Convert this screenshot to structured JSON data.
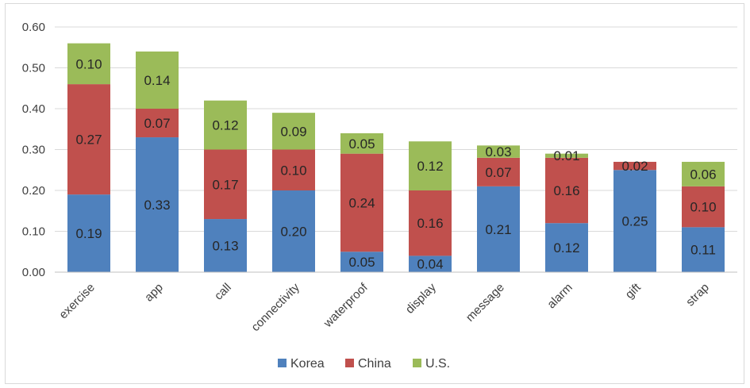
{
  "chart_data": {
    "type": "bar",
    "stacked": true,
    "categories": [
      "exercise",
      "app",
      "call",
      "connectivity",
      "waterproof",
      "display",
      "message",
      "alarm",
      "gift",
      "strap"
    ],
    "series": [
      {
        "name": "Korea",
        "color": "#4f81bd",
        "values": [
          0.19,
          0.33,
          0.13,
          0.2,
          0.05,
          0.04,
          0.21,
          0.12,
          0.25,
          0.11
        ],
        "labels": [
          "0.19",
          "0.33",
          "0.13",
          "0.20",
          "0.05",
          "0.04",
          "0.21",
          "0.12",
          "0.25",
          "0.11"
        ]
      },
      {
        "name": "China",
        "color": "#c0504d",
        "values": [
          0.27,
          0.07,
          0.17,
          0.1,
          0.24,
          0.16,
          0.07,
          0.16,
          0.02,
          0.1
        ],
        "labels": [
          "0.27",
          "0.07",
          "0.17",
          "0.10",
          "0.24",
          "0.16",
          "0.07",
          "0.16",
          "0.02",
          "0.10"
        ]
      },
      {
        "name": "U.S.",
        "color": "#9bbb59",
        "values": [
          0.1,
          0.14,
          0.12,
          0.09,
          0.05,
          0.12,
          0.03,
          0.01,
          0.0,
          0.06
        ],
        "labels": [
          "0.10",
          "0.14",
          "0.12",
          "0.09",
          "0.05",
          "0.12",
          "0.03",
          "0.01",
          "",
          "0.06"
        ]
      }
    ],
    "ylim": [
      0,
      0.6
    ],
    "yticks": [
      "0.00",
      "0.10",
      "0.20",
      "0.30",
      "0.40",
      "0.50",
      "0.60"
    ],
    "grid": true,
    "legend_position": "bottom",
    "title": "",
    "xlabel": "",
    "ylabel": ""
  }
}
